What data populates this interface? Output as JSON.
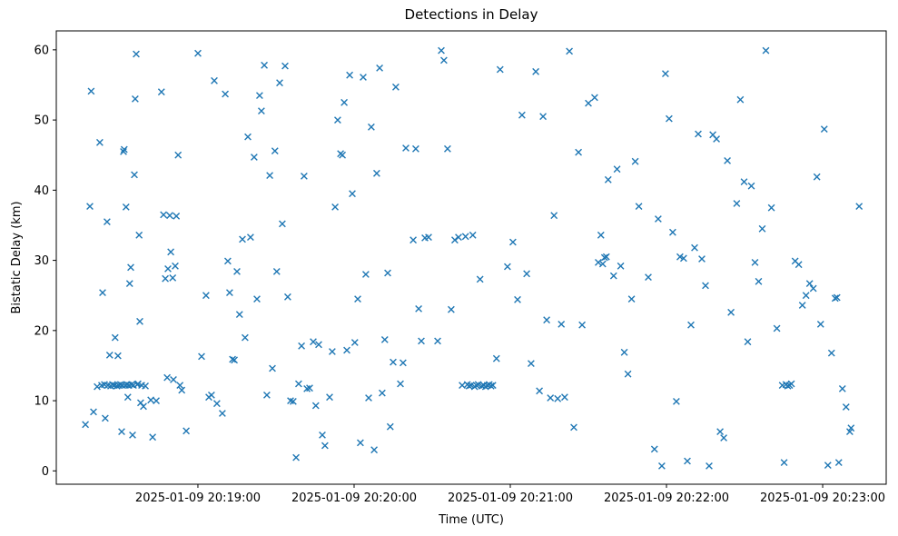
{
  "figure": {
    "title": "Detections in Delay",
    "xlabel": "Time (UTC)",
    "ylabel": "Bistatic Delay (km)"
  },
  "chart_data": {
    "type": "scatter",
    "title": "Detections in Delay",
    "xlabel": "Time (UTC)",
    "ylabel": "Bistatic Delay (km)",
    "marker": "x",
    "marker_color": "#1f77b4",
    "grid": false,
    "legend": "none",
    "x_unit": "seconds since 2025-01-09 20:18:00 UTC",
    "x_range": [
      5.6,
      324.4
    ],
    "y_range": [
      -1.9,
      62.7
    ],
    "x_ticks": [
      {
        "value": 60,
        "label": "2025-01-09 20:19:00"
      },
      {
        "value": 120,
        "label": "2025-01-09 20:20:00"
      },
      {
        "value": 180,
        "label": "2025-01-09 20:21:00"
      },
      {
        "value": 240,
        "label": "2025-01-09 20:22:00"
      },
      {
        "value": 300,
        "label": "2025-01-09 20:23:00"
      }
    ],
    "y_ticks": [
      0,
      10,
      20,
      30,
      40,
      50,
      60
    ],
    "points": [
      [
        16.8,
        6.6
      ],
      [
        18.5,
        37.7
      ],
      [
        19.0,
        54.1
      ],
      [
        19.9,
        8.4
      ],
      [
        21.3,
        12.0
      ],
      [
        22.3,
        46.8
      ],
      [
        23.0,
        12.2
      ],
      [
        23.4,
        25.4
      ],
      [
        24.1,
        12.3
      ],
      [
        24.4,
        7.5
      ],
      [
        25.1,
        35.5
      ],
      [
        25.4,
        12.2
      ],
      [
        26.1,
        16.5
      ],
      [
        26.5,
        12.1
      ],
      [
        27.2,
        12.3
      ],
      [
        27.9,
        12.2
      ],
      [
        28.2,
        19.0
      ],
      [
        28.9,
        12.1
      ],
      [
        29.3,
        16.4
      ],
      [
        29.6,
        12.2
      ],
      [
        30.3,
        12.3
      ],
      [
        30.7,
        5.6
      ],
      [
        31.0,
        12.2
      ],
      [
        31.4,
        45.5
      ],
      [
        31.7,
        45.8
      ],
      [
        32.1,
        12.2
      ],
      [
        32.4,
        37.6
      ],
      [
        32.8,
        12.3
      ],
      [
        33.1,
        10.5
      ],
      [
        33.5,
        12.2
      ],
      [
        33.8,
        26.7
      ],
      [
        34.2,
        29.0
      ],
      [
        34.5,
        12.3
      ],
      [
        34.9,
        5.1
      ],
      [
        35.2,
        12.2
      ],
      [
        35.6,
        42.2
      ],
      [
        35.9,
        53.0
      ],
      [
        36.3,
        59.4
      ],
      [
        36.7,
        12.3
      ],
      [
        37.0,
        12.4
      ],
      [
        37.4,
        33.6
      ],
      [
        37.7,
        21.3
      ],
      [
        38.0,
        9.7
      ],
      [
        38.4,
        12.2
      ],
      [
        39.1,
        9.2
      ],
      [
        39.8,
        12.1
      ],
      [
        41.9,
        10.1
      ],
      [
        42.6,
        4.8
      ],
      [
        44.0,
        10.0
      ],
      [
        46.0,
        54.0
      ],
      [
        46.8,
        36.5
      ],
      [
        47.5,
        27.4
      ],
      [
        48.2,
        13.3
      ],
      [
        48.5,
        28.8
      ],
      [
        49.2,
        36.4
      ],
      [
        49.6,
        31.2
      ],
      [
        50.3,
        27.5
      ],
      [
        50.6,
        13.0
      ],
      [
        51.3,
        29.2
      ],
      [
        51.7,
        36.3
      ],
      [
        52.4,
        45.0
      ],
      [
        53.1,
        12.2
      ],
      [
        53.8,
        11.5
      ],
      [
        55.5,
        5.7
      ],
      [
        60.0,
        59.5
      ],
      [
        61.4,
        16.3
      ],
      [
        63.1,
        25.0
      ],
      [
        64.2,
        10.5
      ],
      [
        65.2,
        10.8
      ],
      [
        66.3,
        55.6
      ],
      [
        67.3,
        9.6
      ],
      [
        69.4,
        8.2
      ],
      [
        70.5,
        53.7
      ],
      [
        71.5,
        29.9
      ],
      [
        72.2,
        25.4
      ],
      [
        73.3,
        15.9
      ],
      [
        74.0,
        15.8
      ],
      [
        75.0,
        28.4
      ],
      [
        76.0,
        22.3
      ],
      [
        77.1,
        33.0
      ],
      [
        78.1,
        19.0
      ],
      [
        79.2,
        47.6
      ],
      [
        80.2,
        33.3
      ],
      [
        81.6,
        44.7
      ],
      [
        82.7,
        24.5
      ],
      [
        83.7,
        53.5
      ],
      [
        84.4,
        51.3
      ],
      [
        85.5,
        57.8
      ],
      [
        86.5,
        10.8
      ],
      [
        87.6,
        42.1
      ],
      [
        88.6,
        14.6
      ],
      [
        89.6,
        45.6
      ],
      [
        90.3,
        28.4
      ],
      [
        91.4,
        55.3
      ],
      [
        92.4,
        35.2
      ],
      [
        93.5,
        57.7
      ],
      [
        94.5,
        24.8
      ],
      [
        95.6,
        10.0
      ],
      [
        96.6,
        9.9
      ],
      [
        97.7,
        1.9
      ],
      [
        98.7,
        12.4
      ],
      [
        99.8,
        17.8
      ],
      [
        100.8,
        42.0
      ],
      [
        101.9,
        11.7
      ],
      [
        102.9,
        11.8
      ],
      [
        104.3,
        18.4
      ],
      [
        105.3,
        9.3
      ],
      [
        106.4,
        18.0
      ],
      [
        107.8,
        5.1
      ],
      [
        108.8,
        3.6
      ],
      [
        110.6,
        10.5
      ],
      [
        111.6,
        17.0
      ],
      [
        112.7,
        37.6
      ],
      [
        113.7,
        50.0
      ],
      [
        114.8,
        45.2
      ],
      [
        115.5,
        45.0
      ],
      [
        116.2,
        52.5
      ],
      [
        117.2,
        17.2
      ],
      [
        118.3,
        56.4
      ],
      [
        119.3,
        39.5
      ],
      [
        120.3,
        18.3
      ],
      [
        121.4,
        24.5
      ],
      [
        122.4,
        4.0
      ],
      [
        123.5,
        56.1
      ],
      [
        124.5,
        28.0
      ],
      [
        125.6,
        10.4
      ],
      [
        126.6,
        49.0
      ],
      [
        127.7,
        3.0
      ],
      [
        128.7,
        42.4
      ],
      [
        129.8,
        57.4
      ],
      [
        130.8,
        11.1
      ],
      [
        131.8,
        18.7
      ],
      [
        132.9,
        28.2
      ],
      [
        133.9,
        6.3
      ],
      [
        135.0,
        15.5
      ],
      [
        136.0,
        54.7
      ],
      [
        137.8,
        12.4
      ],
      [
        138.8,
        15.4
      ],
      [
        139.9,
        46.0
      ],
      [
        142.7,
        32.9
      ],
      [
        143.7,
        45.9
      ],
      [
        144.8,
        23.1
      ],
      [
        145.8,
        18.5
      ],
      [
        147.2,
        33.2
      ],
      [
        148.6,
        33.3
      ],
      [
        152.1,
        18.5
      ],
      [
        153.5,
        59.9
      ],
      [
        154.5,
        58.5
      ],
      [
        155.9,
        45.9
      ],
      [
        157.3,
        23.0
      ],
      [
        158.7,
        32.9
      ],
      [
        160.1,
        33.3
      ],
      [
        161.5,
        12.2
      ],
      [
        162.8,
        33.4
      ],
      [
        163.5,
        12.3
      ],
      [
        164.2,
        12.1
      ],
      [
        164.9,
        12.2
      ],
      [
        165.6,
        33.6
      ],
      [
        166.3,
        12.0
      ],
      [
        167.0,
        12.2
      ],
      [
        167.7,
        12.3
      ],
      [
        168.4,
        27.3
      ],
      [
        169.1,
        12.1
      ],
      [
        169.8,
        12.2
      ],
      [
        170.5,
        12.0
      ],
      [
        171.2,
        12.2
      ],
      [
        171.9,
        12.3
      ],
      [
        172.6,
        12.1
      ],
      [
        173.3,
        12.2
      ],
      [
        174.7,
        16.0
      ],
      [
        176.1,
        57.2
      ],
      [
        178.9,
        29.1
      ],
      [
        181.0,
        32.6
      ],
      [
        182.8,
        24.4
      ],
      [
        184.5,
        50.7
      ],
      [
        186.3,
        28.1
      ],
      [
        188.0,
        15.3
      ],
      [
        189.8,
        56.9
      ],
      [
        191.2,
        11.4
      ],
      [
        192.6,
        50.5
      ],
      [
        194.0,
        21.5
      ],
      [
        195.4,
        10.4
      ],
      [
        196.8,
        36.4
      ],
      [
        198.2,
        10.3
      ],
      [
        199.6,
        20.9
      ],
      [
        200.9,
        10.5
      ],
      [
        202.7,
        59.8
      ],
      [
        204.4,
        6.2
      ],
      [
        206.2,
        45.4
      ],
      [
        207.6,
        20.8
      ],
      [
        210.0,
        52.4
      ],
      [
        212.4,
        53.2
      ],
      [
        213.8,
        29.7
      ],
      [
        214.8,
        33.6
      ],
      [
        215.5,
        29.5
      ],
      [
        216.2,
        30.4
      ],
      [
        216.9,
        30.5
      ],
      [
        217.6,
        41.5
      ],
      [
        219.7,
        27.8
      ],
      [
        221.0,
        43.0
      ],
      [
        222.4,
        29.2
      ],
      [
        223.8,
        16.9
      ],
      [
        225.2,
        13.8
      ],
      [
        226.6,
        24.5
      ],
      [
        228.0,
        44.1
      ],
      [
        229.4,
        37.7
      ],
      [
        233.0,
        27.6
      ],
      [
        235.4,
        3.1
      ],
      [
        236.8,
        35.9
      ],
      [
        238.2,
        0.7
      ],
      [
        239.6,
        56.6
      ],
      [
        241.0,
        50.2
      ],
      [
        242.4,
        34.0
      ],
      [
        243.8,
        9.9
      ],
      [
        245.2,
        30.5
      ],
      [
        246.6,
        30.3
      ],
      [
        248.0,
        1.4
      ],
      [
        249.4,
        20.8
      ],
      [
        250.8,
        31.8
      ],
      [
        252.2,
        48.0
      ],
      [
        253.6,
        30.2
      ],
      [
        255.0,
        26.4
      ],
      [
        256.4,
        0.7
      ],
      [
        257.8,
        47.9
      ],
      [
        259.2,
        47.3
      ],
      [
        260.6,
        5.6
      ],
      [
        262.0,
        4.7
      ],
      [
        263.4,
        44.2
      ],
      [
        264.8,
        22.6
      ],
      [
        267.0,
        38.1
      ],
      [
        268.4,
        52.9
      ],
      [
        269.8,
        41.2
      ],
      [
        271.2,
        18.4
      ],
      [
        272.6,
        40.6
      ],
      [
        274.0,
        29.7
      ],
      [
        275.4,
        27.0
      ],
      [
        276.8,
        34.5
      ],
      [
        278.2,
        59.9
      ],
      [
        280.3,
        37.5
      ],
      [
        282.4,
        20.3
      ],
      [
        284.5,
        12.2
      ],
      [
        285.2,
        1.2
      ],
      [
        285.9,
        12.3
      ],
      [
        286.6,
        12.1
      ],
      [
        287.3,
        12.2
      ],
      [
        288.0,
        12.4
      ],
      [
        289.4,
        29.9
      ],
      [
        290.8,
        29.4
      ],
      [
        292.2,
        23.6
      ],
      [
        293.6,
        25.0
      ],
      [
        295.0,
        26.7
      ],
      [
        296.4,
        26.0
      ],
      [
        297.8,
        41.9
      ],
      [
        299.2,
        20.9
      ],
      [
        300.6,
        48.7
      ],
      [
        302.0,
        0.8
      ],
      [
        303.4,
        16.8
      ],
      [
        304.8,
        24.6
      ],
      [
        305.5,
        24.7
      ],
      [
        306.2,
        1.2
      ],
      [
        307.6,
        11.7
      ],
      [
        309.0,
        9.1
      ],
      [
        310.4,
        5.6
      ],
      [
        310.9,
        6.1
      ],
      [
        314.0,
        37.7
      ]
    ]
  }
}
